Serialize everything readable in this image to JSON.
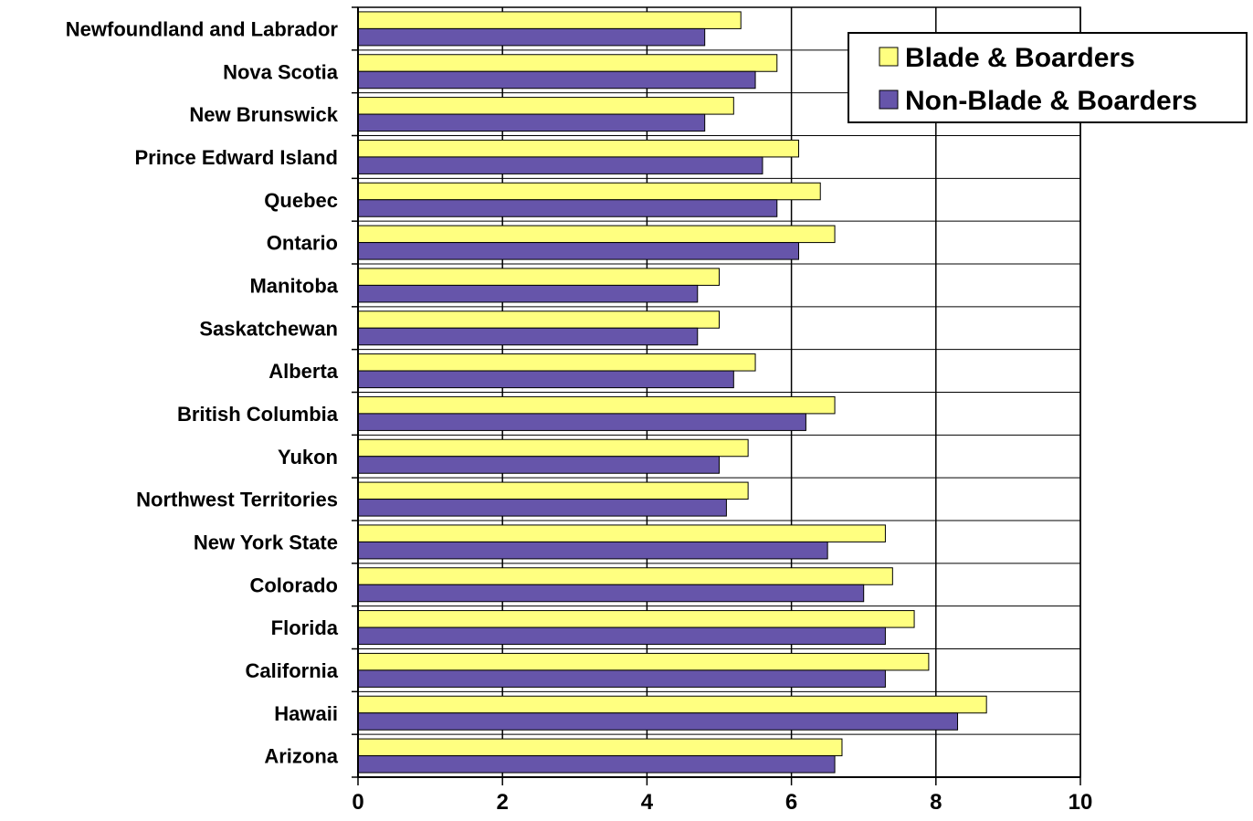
{
  "chart_data": {
    "type": "bar",
    "orientation": "horizontal",
    "categories": [
      "Newfoundland and Labrador",
      "Nova Scotia",
      "New Brunswick",
      "Prince Edward Island",
      "Quebec",
      "Ontario",
      "Manitoba",
      "Saskatchewan",
      "Alberta",
      "British Columbia",
      "Yukon",
      "Northwest Territories",
      "New York State",
      "Colorado",
      "Florida",
      "California",
      "Hawaii",
      "Arizona"
    ],
    "series": [
      {
        "name": "Blade & Boarders",
        "color": "#FFFF80",
        "values": [
          5.3,
          5.8,
          5.2,
          6.1,
          6.4,
          6.6,
          5.0,
          5.0,
          5.5,
          6.6,
          5.4,
          5.4,
          7.3,
          7.4,
          7.7,
          7.9,
          8.7,
          6.7
        ]
      },
      {
        "name": "Non-Blade & Boarders",
        "color": "#6655AA",
        "values": [
          4.8,
          5.5,
          4.8,
          5.6,
          5.8,
          6.1,
          4.7,
          4.7,
          5.2,
          6.2,
          5.0,
          5.1,
          6.5,
          7.0,
          7.3,
          7.3,
          8.3,
          6.6
        ]
      }
    ],
    "xlim": [
      0,
      10
    ],
    "xticks": [
      "0",
      "2",
      "4",
      "6",
      "8",
      "10"
    ],
    "xlabel": "",
    "ylabel": "",
    "title": "",
    "grid": "vertical gridlines",
    "legend_position": "top-right"
  }
}
